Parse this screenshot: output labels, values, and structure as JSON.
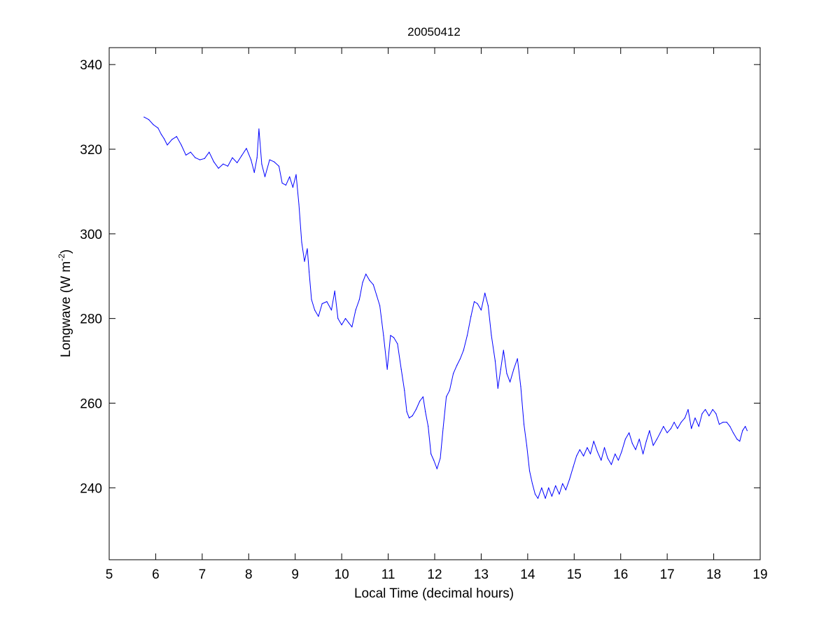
{
  "chart_data": {
    "type": "line",
    "title": "20050412",
    "xlabel": "Local Time (decimal hours)",
    "ylabel_main": "Longwave (W m",
    "ylabel_sup": "-2",
    "ylabel_close": ")",
    "xlim": [
      5,
      19
    ],
    "ylim": [
      223,
      344
    ],
    "xticks": [
      5,
      6,
      7,
      8,
      9,
      10,
      11,
      12,
      13,
      14,
      15,
      16,
      17,
      18,
      19
    ],
    "yticks": [
      240,
      260,
      280,
      300,
      320,
      340
    ],
    "grid": false,
    "line_color": "#0000ff",
    "series": [
      {
        "points": [
          [
            5.75,
            327.6
          ],
          [
            5.85,
            327.0
          ],
          [
            5.95,
            325.8
          ],
          [
            6.05,
            325.0
          ],
          [
            6.12,
            323.5
          ],
          [
            6.18,
            322.5
          ],
          [
            6.25,
            321.0
          ],
          [
            6.35,
            322.3
          ],
          [
            6.45,
            323.0
          ],
          [
            6.55,
            321.0
          ],
          [
            6.65,
            318.6
          ],
          [
            6.75,
            319.3
          ],
          [
            6.85,
            318.0
          ],
          [
            6.95,
            317.5
          ],
          [
            7.05,
            317.8
          ],
          [
            7.15,
            319.3
          ],
          [
            7.25,
            317.0
          ],
          [
            7.35,
            315.5
          ],
          [
            7.45,
            316.5
          ],
          [
            7.55,
            316.0
          ],
          [
            7.65,
            318.0
          ],
          [
            7.75,
            316.8
          ],
          [
            7.85,
            318.5
          ],
          [
            7.95,
            320.2
          ],
          [
            8.05,
            317.5
          ],
          [
            8.12,
            314.5
          ],
          [
            8.18,
            318.0
          ],
          [
            8.22,
            324.8
          ],
          [
            8.28,
            316.5
          ],
          [
            8.35,
            313.5
          ],
          [
            8.45,
            317.5
          ],
          [
            8.55,
            317.0
          ],
          [
            8.65,
            316.0
          ],
          [
            8.72,
            312.0
          ],
          [
            8.8,
            311.5
          ],
          [
            8.88,
            313.5
          ],
          [
            8.95,
            311.0
          ],
          [
            9.02,
            314.0
          ],
          [
            9.08,
            307.0
          ],
          [
            9.14,
            298.0
          ],
          [
            9.2,
            293.5
          ],
          [
            9.26,
            296.5
          ],
          [
            9.3,
            291.0
          ],
          [
            9.35,
            284.5
          ],
          [
            9.42,
            282.0
          ],
          [
            9.5,
            280.5
          ],
          [
            9.58,
            283.5
          ],
          [
            9.68,
            284.0
          ],
          [
            9.78,
            282.0
          ],
          [
            9.85,
            286.5
          ],
          [
            9.92,
            280.0
          ],
          [
            10.0,
            278.5
          ],
          [
            10.08,
            280.0
          ],
          [
            10.15,
            279.0
          ],
          [
            10.22,
            278.0
          ],
          [
            10.3,
            282.0
          ],
          [
            10.38,
            284.5
          ],
          [
            10.45,
            288.5
          ],
          [
            10.52,
            290.5
          ],
          [
            10.6,
            289.0
          ],
          [
            10.68,
            288.0
          ],
          [
            10.75,
            285.5
          ],
          [
            10.82,
            283.0
          ],
          [
            10.9,
            276.0
          ],
          [
            10.98,
            268.0
          ],
          [
            11.05,
            276.0
          ],
          [
            11.12,
            275.5
          ],
          [
            11.2,
            274.0
          ],
          [
            11.28,
            268.0
          ],
          [
            11.35,
            263.0
          ],
          [
            11.4,
            258.0
          ],
          [
            11.45,
            256.5
          ],
          [
            11.52,
            257.0
          ],
          [
            11.6,
            258.5
          ],
          [
            11.68,
            260.5
          ],
          [
            11.75,
            261.5
          ],
          [
            11.8,
            258.0
          ],
          [
            11.86,
            254.5
          ],
          [
            11.92,
            248.0
          ],
          [
            11.98,
            246.5
          ],
          [
            12.05,
            244.5
          ],
          [
            12.12,
            247.0
          ],
          [
            12.18,
            254.0
          ],
          [
            12.25,
            261.5
          ],
          [
            12.32,
            263.0
          ],
          [
            12.4,
            267.0
          ],
          [
            12.48,
            269.0
          ],
          [
            12.55,
            270.5
          ],
          [
            12.62,
            272.5
          ],
          [
            12.7,
            276.0
          ],
          [
            12.78,
            280.5
          ],
          [
            12.85,
            284.0
          ],
          [
            12.92,
            283.5
          ],
          [
            13.0,
            282.0
          ],
          [
            13.08,
            286.0
          ],
          [
            13.15,
            283.0
          ],
          [
            13.22,
            276.0
          ],
          [
            13.3,
            270.0
          ],
          [
            13.36,
            263.5
          ],
          [
            13.42,
            268.0
          ],
          [
            13.48,
            272.5
          ],
          [
            13.55,
            267.0
          ],
          [
            13.62,
            265.0
          ],
          [
            13.7,
            268.0
          ],
          [
            13.78,
            270.5
          ],
          [
            13.85,
            264.0
          ],
          [
            13.92,
            255.0
          ],
          [
            13.98,
            250.0
          ],
          [
            14.04,
            244.0
          ],
          [
            14.1,
            241.0
          ],
          [
            14.16,
            238.5
          ],
          [
            14.22,
            237.5
          ],
          [
            14.3,
            240.0
          ],
          [
            14.38,
            237.5
          ],
          [
            14.45,
            240.0
          ],
          [
            14.52,
            238.0
          ],
          [
            14.6,
            240.5
          ],
          [
            14.68,
            238.5
          ],
          [
            14.75,
            241.0
          ],
          [
            14.82,
            239.5
          ],
          [
            14.9,
            242.0
          ],
          [
            14.98,
            245.0
          ],
          [
            15.05,
            247.5
          ],
          [
            15.12,
            249.0
          ],
          [
            15.2,
            247.5
          ],
          [
            15.28,
            249.5
          ],
          [
            15.35,
            248.0
          ],
          [
            15.42,
            251.0
          ],
          [
            15.5,
            248.5
          ],
          [
            15.58,
            246.5
          ],
          [
            15.65,
            249.5
          ],
          [
            15.72,
            247.0
          ],
          [
            15.8,
            245.5
          ],
          [
            15.88,
            248.0
          ],
          [
            15.95,
            246.5
          ],
          [
            16.02,
            248.5
          ],
          [
            16.1,
            251.5
          ],
          [
            16.18,
            253.0
          ],
          [
            16.25,
            250.5
          ],
          [
            16.32,
            249.0
          ],
          [
            16.4,
            251.5
          ],
          [
            16.48,
            248.0
          ],
          [
            16.55,
            251.0
          ],
          [
            16.62,
            253.5
          ],
          [
            16.7,
            250.0
          ],
          [
            16.78,
            251.5
          ],
          [
            16.85,
            253.0
          ],
          [
            16.92,
            254.5
          ],
          [
            17.0,
            253.0
          ],
          [
            17.08,
            254.0
          ],
          [
            17.15,
            255.5
          ],
          [
            17.22,
            254.0
          ],
          [
            17.3,
            255.5
          ],
          [
            17.38,
            256.5
          ],
          [
            17.45,
            258.5
          ],
          [
            17.52,
            254.0
          ],
          [
            17.6,
            256.5
          ],
          [
            17.68,
            254.5
          ],
          [
            17.75,
            257.5
          ],
          [
            17.82,
            258.5
          ],
          [
            17.9,
            257.0
          ],
          [
            17.98,
            258.5
          ],
          [
            18.05,
            257.5
          ],
          [
            18.12,
            255.0
          ],
          [
            18.2,
            255.5
          ],
          [
            18.28,
            255.5
          ],
          [
            18.35,
            254.5
          ],
          [
            18.42,
            253.0
          ],
          [
            18.5,
            251.5
          ],
          [
            18.56,
            251.0
          ],
          [
            18.62,
            253.5
          ],
          [
            18.68,
            254.5
          ],
          [
            18.72,
            253.5
          ]
        ]
      }
    ]
  }
}
